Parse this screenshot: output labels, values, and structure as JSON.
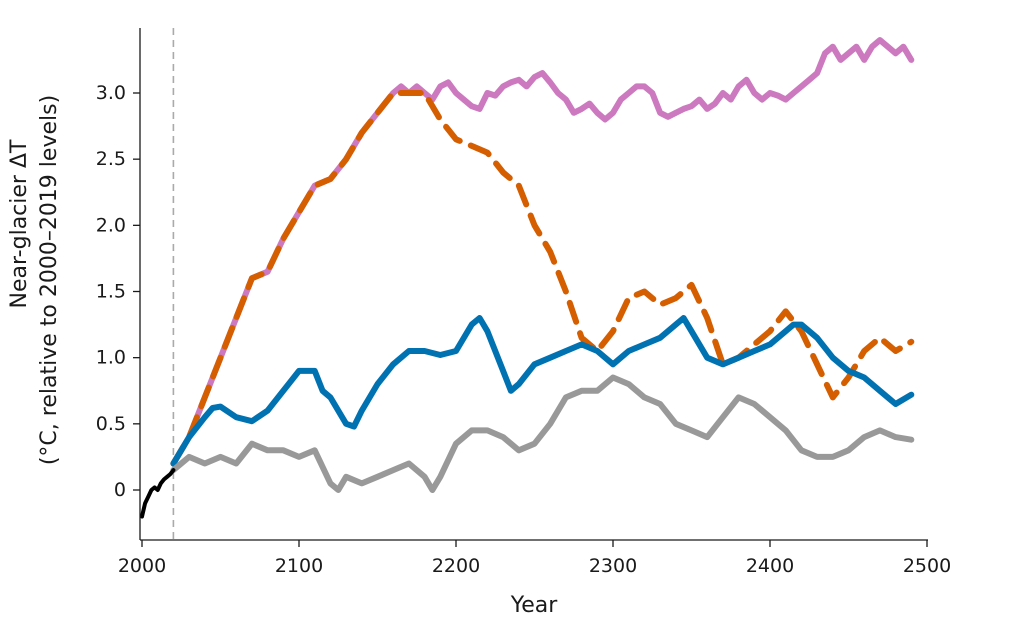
{
  "chart_data": {
    "type": "line",
    "title": "",
    "xlabel": "Year",
    "ylabel_line1": "Near-glacier ΔT",
    "ylabel_line2": "(°C, relative to 2000–2019 levels)",
    "xlim": [
      2000,
      2500
    ],
    "ylim": [
      -0.35,
      3.55
    ],
    "xticks": [
      2000,
      2100,
      2200,
      2300,
      2400,
      2500
    ],
    "xtick_labels": [
      "2000",
      "2100",
      "2200",
      "2300",
      "2400",
      "2500"
    ],
    "yticks": [
      0,
      0.5,
      1.0,
      1.5,
      2.0,
      2.5,
      3.0
    ],
    "ytick_labels": [
      "0",
      "0.5",
      "1.0",
      "1.5",
      "2.0",
      "2.5",
      "3.0"
    ],
    "reference_line": {
      "x": 2020,
      "style": "dashed",
      "color": "#aaaaaa"
    },
    "grid": false,
    "series": [
      {
        "name": "pink",
        "color": "#cc79c0",
        "dashed": false,
        "x": [
          2020,
          2030,
          2040,
          2050,
          2060,
          2070,
          2080,
          2090,
          2100,
          2110,
          2120,
          2130,
          2140,
          2150,
          2160,
          2165,
          2170,
          2175,
          2180,
          2185,
          2190,
          2195,
          2200,
          2205,
          2210,
          2215,
          2220,
          2225,
          2230,
          2235,
          2240,
          2245,
          2250,
          2255,
          2260,
          2265,
          2270,
          2275,
          2280,
          2285,
          2290,
          2295,
          2300,
          2305,
          2310,
          2315,
          2320,
          2325,
          2330,
          2335,
          2340,
          2345,
          2350,
          2355,
          2360,
          2365,
          2370,
          2375,
          2380,
          2385,
          2390,
          2395,
          2400,
          2405,
          2410,
          2415,
          2420,
          2425,
          2430,
          2435,
          2440,
          2445,
          2450,
          2455,
          2460,
          2465,
          2470,
          2475,
          2480,
          2485,
          2490
        ],
        "values": [
          0.2,
          0.4,
          0.7,
          1.0,
          1.3,
          1.6,
          1.65,
          1.9,
          2.1,
          2.3,
          2.35,
          2.5,
          2.7,
          2.85,
          3.0,
          3.05,
          3.0,
          3.05,
          3.0,
          2.95,
          3.05,
          3.08,
          3.0,
          2.95,
          2.9,
          2.88,
          3.0,
          2.98,
          3.05,
          3.08,
          3.1,
          3.05,
          3.12,
          3.15,
          3.08,
          3.0,
          2.95,
          2.85,
          2.88,
          2.92,
          2.85,
          2.8,
          2.85,
          2.95,
          3.0,
          3.05,
          3.05,
          3.0,
          2.85,
          2.82,
          2.85,
          2.88,
          2.9,
          2.95,
          2.88,
          2.92,
          3.0,
          2.95,
          3.05,
          3.1,
          3.0,
          2.95,
          3.0,
          2.98,
          2.95,
          3.0,
          3.05,
          3.1,
          3.15,
          3.3,
          3.35,
          3.25,
          3.3,
          3.35,
          3.25,
          3.35,
          3.4,
          3.35,
          3.3,
          3.35,
          3.25
        ]
      },
      {
        "name": "orange-dashed",
        "color": "#d55e00",
        "dashed": true,
        "x": [
          2020,
          2030,
          2040,
          2050,
          2060,
          2070,
          2080,
          2090,
          2100,
          2110,
          2120,
          2130,
          2140,
          2150,
          2160,
          2170,
          2180,
          2190,
          2200,
          2210,
          2220,
          2230,
          2240,
          2250,
          2260,
          2270,
          2280,
          2290,
          2300,
          2310,
          2320,
          2330,
          2340,
          2350,
          2360,
          2370,
          2380,
          2390,
          2400,
          2410,
          2420,
          2430,
          2440,
          2450,
          2460,
          2470,
          2480,
          2490
        ],
        "values": [
          0.2,
          0.4,
          0.7,
          1.0,
          1.3,
          1.6,
          1.65,
          1.9,
          2.1,
          2.3,
          2.35,
          2.5,
          2.7,
          2.85,
          3.0,
          3.0,
          3.0,
          2.8,
          2.65,
          2.6,
          2.55,
          2.4,
          2.3,
          2.0,
          1.8,
          1.5,
          1.15,
          1.05,
          1.2,
          1.45,
          1.5,
          1.4,
          1.45,
          1.55,
          1.3,
          0.95,
          1.0,
          1.1,
          1.2,
          1.35,
          1.2,
          0.95,
          0.7,
          0.85,
          1.05,
          1.15,
          1.05,
          1.12
        ]
      },
      {
        "name": "blue",
        "color": "#0072b2",
        "dashed": false,
        "x": [
          2020,
          2030,
          2040,
          2045,
          2050,
          2060,
          2070,
          2080,
          2090,
          2100,
          2110,
          2115,
          2120,
          2130,
          2135,
          2140,
          2150,
          2160,
          2170,
          2180,
          2190,
          2200,
          2210,
          2215,
          2220,
          2230,
          2235,
          2240,
          2250,
          2260,
          2270,
          2280,
          2290,
          2300,
          2310,
          2320,
          2330,
          2340,
          2345,
          2350,
          2360,
          2370,
          2380,
          2390,
          2400,
          2410,
          2415,
          2420,
          2430,
          2440,
          2450,
          2460,
          2470,
          2480,
          2490
        ],
        "values": [
          0.2,
          0.4,
          0.55,
          0.62,
          0.63,
          0.55,
          0.52,
          0.6,
          0.75,
          0.9,
          0.9,
          0.75,
          0.7,
          0.5,
          0.48,
          0.6,
          0.8,
          0.95,
          1.05,
          1.05,
          1.02,
          1.05,
          1.25,
          1.3,
          1.2,
          0.9,
          0.75,
          0.8,
          0.95,
          1.0,
          1.05,
          1.1,
          1.05,
          0.95,
          1.05,
          1.1,
          1.15,
          1.25,
          1.3,
          1.2,
          1.0,
          0.95,
          1.0,
          1.05,
          1.1,
          1.2,
          1.25,
          1.25,
          1.15,
          1.0,
          0.9,
          0.85,
          0.75,
          0.65,
          0.72
        ]
      },
      {
        "name": "gray",
        "color": "#999999",
        "dashed": false,
        "x": [
          2020,
          2030,
          2040,
          2050,
          2060,
          2070,
          2080,
          2090,
          2100,
          2110,
          2120,
          2125,
          2130,
          2140,
          2150,
          2160,
          2170,
          2180,
          2185,
          2190,
          2200,
          2210,
          2220,
          2230,
          2240,
          2250,
          2260,
          2270,
          2280,
          2290,
          2300,
          2310,
          2320,
          2330,
          2340,
          2350,
          2360,
          2370,
          2380,
          2390,
          2400,
          2410,
          2420,
          2430,
          2440,
          2450,
          2460,
          2470,
          2480,
          2490
        ],
        "values": [
          0.15,
          0.25,
          0.2,
          0.25,
          0.2,
          0.35,
          0.3,
          0.3,
          0.25,
          0.3,
          0.05,
          0.0,
          0.1,
          0.05,
          0.1,
          0.15,
          0.2,
          0.1,
          0.0,
          0.1,
          0.35,
          0.45,
          0.45,
          0.4,
          0.3,
          0.35,
          0.5,
          0.7,
          0.75,
          0.75,
          0.85,
          0.8,
          0.7,
          0.65,
          0.5,
          0.45,
          0.4,
          0.55,
          0.7,
          0.65,
          0.55,
          0.45,
          0.3,
          0.25,
          0.25,
          0.3,
          0.4,
          0.45,
          0.4,
          0.38
        ]
      },
      {
        "name": "observed",
        "color": "#000000",
        "dashed": false,
        "x": [
          2000,
          2002,
          2004,
          2006,
          2008,
          2010,
          2012,
          2014,
          2016,
          2018,
          2020
        ],
        "values": [
          -0.2,
          -0.1,
          -0.05,
          0.0,
          0.02,
          0.0,
          0.05,
          0.08,
          0.1,
          0.12,
          0.15
        ]
      }
    ]
  }
}
